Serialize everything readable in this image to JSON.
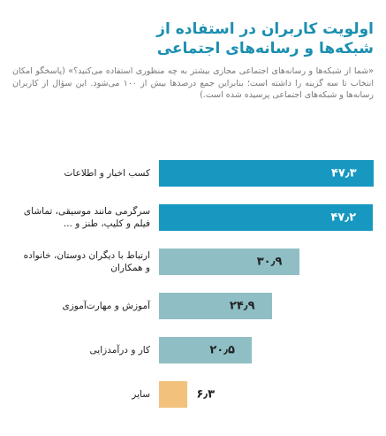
{
  "chart_data": {
    "type": "bar",
    "title": "اولویت کاربران در استفاده از شبکه‌ها و رسانه‌های اجتماعی",
    "subtitle": "«شما از شبکه‌ها و رسانه‌های اجتماعی مجازی بیشتر به چه منظوری استفاده می‌کنید؟» (پاسخگو امکان انتخاب تا سه گزینه را داشته است؛ بنابراین جمع درصدها بیش از ۱۰۰ می‌شود. این سؤال از کاربران رسانه‌ها و شبکه‌های اجتماعی پرسیده شده است.)",
    "categories": [
      "کسب اخبار و اطلاعات",
      "سرگرمی مانند موسیقی، تماشای فیلم و کلیپ، طنز و ...",
      "ارتباط با دیگران دوستان، خانواده و همکاران",
      "آموزش و مهارت‌آموزی",
      "کار و درآمدزایی",
      "سایر"
    ],
    "values": [
      47.3,
      47.2,
      30.9,
      24.9,
      20.5,
      6.3
    ],
    "value_labels": [
      "۴۷٫۳",
      "۴۷٫۲",
      "۳۰٫۹",
      "۲۴٫۹",
      "۲۰٫۵",
      "۶٫۳"
    ],
    "colors": [
      "#1798c1",
      "#1798c1",
      "#8fbfc4",
      "#8fbfc4",
      "#8fbfc4",
      "#f2c27c"
    ]
  }
}
